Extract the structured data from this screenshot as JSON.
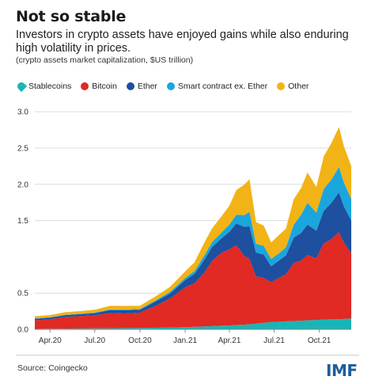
{
  "header": {
    "title": "Not so stable",
    "subtitle": "Investors in crypto assets have enjoyed gains while also enduring high volatility in prices.",
    "note": "(crypto assets market capitalization, $US trillion)"
  },
  "footer": {
    "source": "Source: Coingecko",
    "logo": "IMF"
  },
  "colors": {
    "Stablecoins": "#19b5b6",
    "Bitcoin": "#e02a23",
    "Ether": "#1f4f9f",
    "Smart contract ex. Ether": "#1aa6dd",
    "Other": "#f2b316"
  },
  "chart_data": {
    "type": "area",
    "stacked": true,
    "x": [
      "2020-03-01",
      "2020-04-01",
      "2020-05-01",
      "2020-06-01",
      "2020-07-01",
      "2020-08-01",
      "2020-09-01",
      "2020-10-01",
      "2020-11-01",
      "2020-12-01",
      "2021-01-01",
      "2021-01-20",
      "2021-02-10",
      "2021-02-25",
      "2021-03-15",
      "2021-04-01",
      "2021-04-15",
      "2021-05-01",
      "2021-05-12",
      "2021-05-25",
      "2021-06-10",
      "2021-06-25",
      "2021-07-10",
      "2021-07-25",
      "2021-08-10",
      "2021-08-25",
      "2021-09-07",
      "2021-09-25",
      "2021-10-10",
      "2021-10-25",
      "2021-11-10",
      "2021-11-20",
      "2021-12-05"
    ],
    "series": [
      {
        "name": "Stablecoins",
        "values": [
          0.006,
          0.008,
          0.01,
          0.012,
          0.013,
          0.015,
          0.018,
          0.02,
          0.022,
          0.025,
          0.03,
          0.035,
          0.04,
          0.045,
          0.05,
          0.055,
          0.06,
          0.065,
          0.07,
          0.08,
          0.09,
          0.1,
          0.105,
          0.11,
          0.115,
          0.12,
          0.125,
          0.13,
          0.135,
          0.14,
          0.14,
          0.145,
          0.15
        ]
      },
      {
        "name": "Bitcoin",
        "values": [
          0.12,
          0.13,
          0.16,
          0.17,
          0.18,
          0.21,
          0.2,
          0.21,
          0.3,
          0.4,
          0.55,
          0.6,
          0.75,
          0.9,
          1.0,
          1.05,
          1.1,
          0.95,
          0.9,
          0.65,
          0.62,
          0.55,
          0.6,
          0.65,
          0.8,
          0.83,
          0.9,
          0.85,
          1.05,
          1.1,
          1.2,
          1.05,
          0.9
        ]
      },
      {
        "name": "Ether",
        "values": [
          0.02,
          0.025,
          0.025,
          0.027,
          0.03,
          0.04,
          0.045,
          0.04,
          0.06,
          0.07,
          0.1,
          0.13,
          0.18,
          0.19,
          0.2,
          0.24,
          0.3,
          0.4,
          0.45,
          0.33,
          0.32,
          0.22,
          0.24,
          0.26,
          0.35,
          0.38,
          0.42,
          0.38,
          0.45,
          0.5,
          0.55,
          0.5,
          0.45
        ]
      },
      {
        "name": "Smart contract ex. Ether",
        "values": [
          0.005,
          0.005,
          0.006,
          0.007,
          0.008,
          0.01,
          0.01,
          0.01,
          0.015,
          0.02,
          0.03,
          0.04,
          0.06,
          0.07,
          0.08,
          0.1,
          0.12,
          0.16,
          0.2,
          0.12,
          0.12,
          0.1,
          0.1,
          0.11,
          0.18,
          0.25,
          0.3,
          0.25,
          0.3,
          0.32,
          0.35,
          0.33,
          0.3
        ]
      },
      {
        "name": "Other",
        "values": [
          0.03,
          0.03,
          0.035,
          0.035,
          0.04,
          0.05,
          0.05,
          0.045,
          0.055,
          0.07,
          0.09,
          0.12,
          0.18,
          0.19,
          0.22,
          0.26,
          0.34,
          0.42,
          0.45,
          0.3,
          0.28,
          0.23,
          0.25,
          0.26,
          0.35,
          0.37,
          0.42,
          0.35,
          0.45,
          0.5,
          0.55,
          0.5,
          0.45
        ]
      }
    ],
    "xticks": [
      {
        "date": "2020-04-01",
        "label": "Apr.20"
      },
      {
        "date": "2020-07-01",
        "label": "Jul.20"
      },
      {
        "date": "2020-10-01",
        "label": "Oct.20"
      },
      {
        "date": "2021-01-01",
        "label": "Jan.21"
      },
      {
        "date": "2021-04-01",
        "label": "Apr.21"
      },
      {
        "date": "2021-07-01",
        "label": "Jul.21"
      },
      {
        "date": "2021-10-01",
        "label": "Oct.21"
      }
    ],
    "yticks": [
      0.0,
      0.5,
      1.5,
      2.0,
      2.5,
      3.0
    ],
    "ytick_labels": [
      "0.0",
      "0.5",
      "1.5",
      "2.0",
      "2.5",
      "3.0"
    ],
    "ylim": [
      0,
      3.1
    ],
    "xlim": [
      "2020-03-01",
      "2021-12-05"
    ],
    "grid": "horizontal",
    "legend_position": "top-left"
  }
}
